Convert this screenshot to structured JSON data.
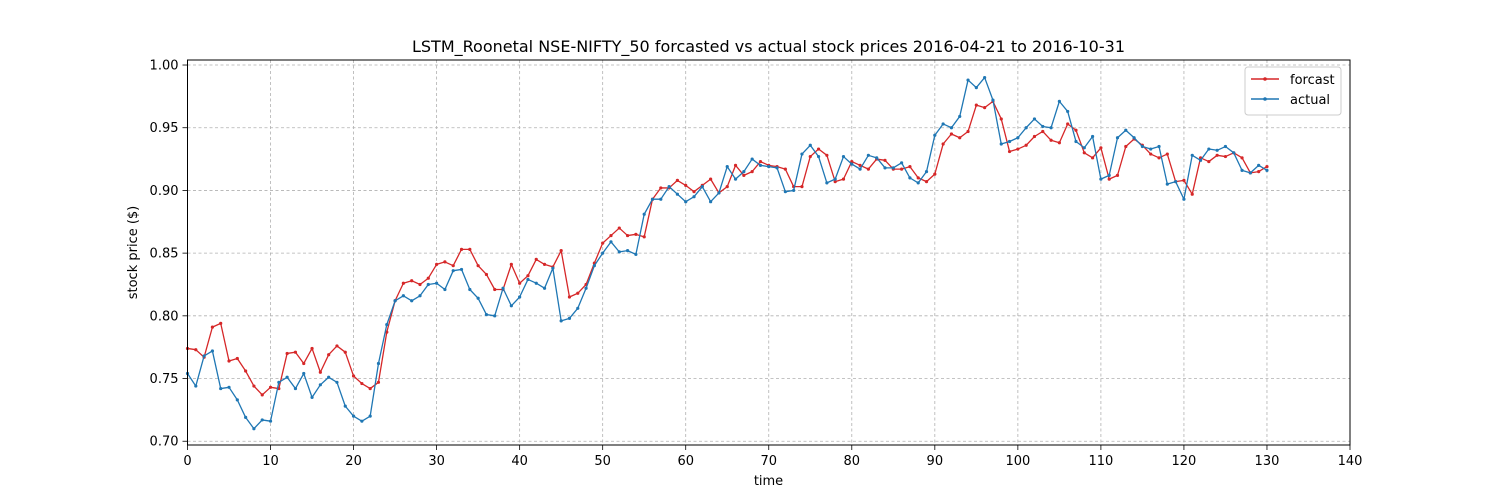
{
  "chart_data": {
    "type": "line",
    "title": "LSTM_Roonetal NSE-NIFTY_50 forcasted vs actual stock prices 2016-04-21 to 2016-10-31",
    "xlabel": "time",
    "ylabel": "stock price ($)",
    "xlim": [
      0,
      140
    ],
    "ylim": [
      0.697,
      1.004
    ],
    "xticks": [
      0,
      10,
      20,
      30,
      40,
      50,
      60,
      70,
      80,
      90,
      100,
      110,
      120,
      130,
      140
    ],
    "yticks": [
      0.7,
      0.75,
      0.8,
      0.85,
      0.9,
      0.95,
      1.0
    ],
    "ytick_labels": [
      "0.70",
      "0.75",
      "0.80",
      "0.85",
      "0.90",
      "0.95",
      "1.00"
    ],
    "grid": true,
    "legend_position": "top-right",
    "series": [
      {
        "name": "forcast",
        "color": "#d62728",
        "values": [
          0.774,
          0.773,
          0.767,
          0.791,
          0.794,
          0.764,
          0.766,
          0.756,
          0.744,
          0.737,
          0.743,
          0.742,
          0.77,
          0.771,
          0.762,
          0.774,
          0.755,
          0.769,
          0.776,
          0.771,
          0.752,
          0.746,
          0.742,
          0.747,
          0.787,
          0.812,
          0.826,
          0.828,
          0.825,
          0.83,
          0.841,
          0.843,
          0.84,
          0.853,
          0.853,
          0.84,
          0.833,
          0.821,
          0.821,
          0.841,
          0.826,
          0.832,
          0.845,
          0.841,
          0.839,
          0.852,
          0.815,
          0.818,
          0.825,
          0.842,
          0.858,
          0.864,
          0.87,
          0.864,
          0.865,
          0.863,
          0.893,
          0.902,
          0.902,
          0.908,
          0.904,
          0.899,
          0.904,
          0.909,
          0.898,
          0.903,
          0.92,
          0.912,
          0.915,
          0.923,
          0.92,
          0.919,
          0.917,
          0.903,
          0.903,
          0.927,
          0.933,
          0.928,
          0.907,
          0.909,
          0.923,
          0.92,
          0.917,
          0.925,
          0.924,
          0.917,
          0.917,
          0.919,
          0.91,
          0.907,
          0.913,
          0.937,
          0.945,
          0.942,
          0.947,
          0.968,
          0.966,
          0.971,
          0.957,
          0.931,
          0.933,
          0.936,
          0.943,
          0.947,
          0.94,
          0.938,
          0.953,
          0.948,
          0.93,
          0.926,
          0.934,
          0.909,
          0.912,
          0.935,
          0.941,
          0.936,
          0.929,
          0.926,
          0.929,
          0.907,
          0.908,
          0.897,
          0.926,
          0.923,
          0.928,
          0.927,
          0.93,
          0.926,
          0.914,
          0.915,
          0.919
        ]
      },
      {
        "name": "actual",
        "color": "#1f77b4",
        "values": [
          0.754,
          0.744,
          0.768,
          0.772,
          0.742,
          0.743,
          0.733,
          0.719,
          0.71,
          0.717,
          0.716,
          0.747,
          0.751,
          0.742,
          0.754,
          0.735,
          0.745,
          0.751,
          0.747,
          0.728,
          0.72,
          0.716,
          0.72,
          0.762,
          0.793,
          0.812,
          0.816,
          0.812,
          0.816,
          0.825,
          0.826,
          0.821,
          0.836,
          0.837,
          0.821,
          0.814,
          0.801,
          0.8,
          0.822,
          0.808,
          0.815,
          0.829,
          0.826,
          0.822,
          0.838,
          0.796,
          0.798,
          0.806,
          0.822,
          0.84,
          0.85,
          0.859,
          0.851,
          0.852,
          0.849,
          0.881,
          0.893,
          0.893,
          0.903,
          0.897,
          0.891,
          0.895,
          0.903,
          0.891,
          0.898,
          0.919,
          0.909,
          0.915,
          0.925,
          0.92,
          0.919,
          0.918,
          0.899,
          0.9,
          0.929,
          0.936,
          0.927,
          0.906,
          0.909,
          0.927,
          0.921,
          0.917,
          0.928,
          0.926,
          0.918,
          0.918,
          0.922,
          0.91,
          0.906,
          0.915,
          0.944,
          0.953,
          0.95,
          0.959,
          0.988,
          0.982,
          0.99,
          0.972,
          0.937,
          0.939,
          0.942,
          0.95,
          0.957,
          0.951,
          0.95,
          0.971,
          0.963,
          0.939,
          0.934,
          0.943,
          0.909,
          0.912,
          0.942,
          0.948,
          0.942,
          0.935,
          0.933,
          0.935,
          0.905,
          0.907,
          0.893,
          0.928,
          0.924,
          0.933,
          0.932,
          0.935,
          0.93,
          0.916,
          0.914,
          0.92,
          0.916
        ]
      }
    ]
  }
}
